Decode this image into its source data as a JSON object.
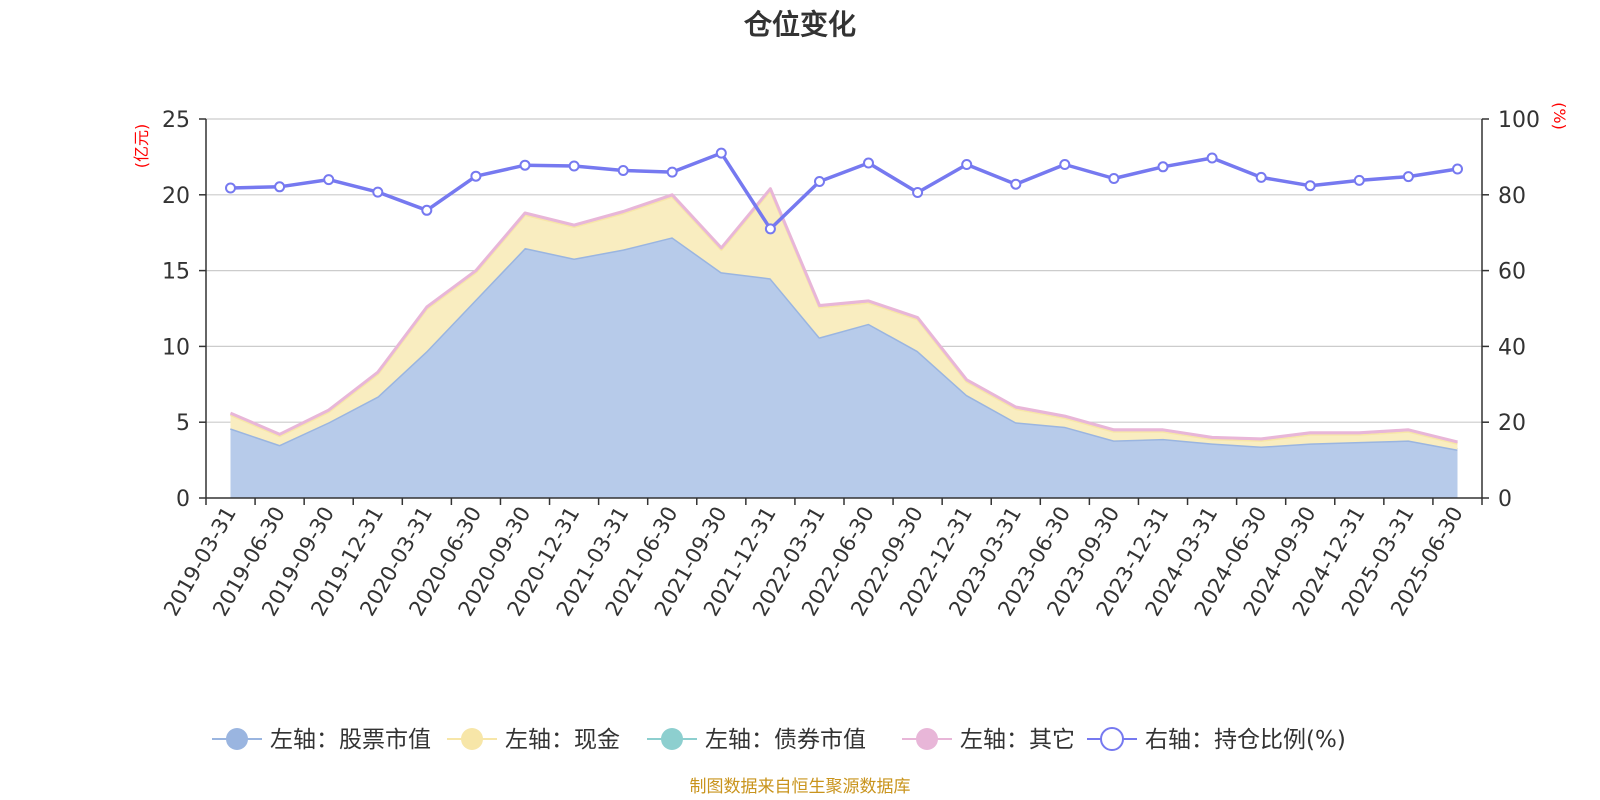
{
  "chart_data": {
    "type": "area",
    "title": "仓位变化",
    "left_axis_unit": "(亿元)",
    "right_axis_unit": "(%)",
    "ylim_left": [
      0,
      25
    ],
    "ylim_right": [
      0,
      100
    ],
    "yticks_left": [
      "0",
      "5",
      "10",
      "15",
      "20",
      "25"
    ],
    "yticks_right": [
      "0",
      "20",
      "40",
      "60",
      "80",
      "100"
    ],
    "grid": true,
    "legend_position": "bottom",
    "x": [
      "2019-03-31",
      "2019-06-30",
      "2019-09-30",
      "2019-12-31",
      "2020-03-31",
      "2020-06-30",
      "2020-09-30",
      "2020-12-31",
      "2021-03-31",
      "2021-06-30",
      "2021-09-30",
      "2021-12-31",
      "2022-03-31",
      "2022-06-30",
      "2022-09-30",
      "2022-12-31",
      "2023-03-31",
      "2023-06-30",
      "2023-09-30",
      "2023-12-31",
      "2024-03-31",
      "2024-06-30",
      "2024-09-30",
      "2024-12-31",
      "2025-03-31",
      "2025-06-30"
    ],
    "series": [
      {
        "name": "左轴：股票市值",
        "axis": "left",
        "kind": "area",
        "color": "#9ab5e0",
        "fill": "#b7cbea",
        "values": [
          4.6,
          3.5,
          5.0,
          6.7,
          9.7,
          13.1,
          16.5,
          15.8,
          16.4,
          17.2,
          14.9,
          14.5,
          10.6,
          11.5,
          9.7,
          6.8,
          5.0,
          4.7,
          3.8,
          3.9,
          3.6,
          3.4,
          3.6,
          3.7,
          3.8,
          3.2
        ]
      },
      {
        "name": "左轴：现金",
        "axis": "left",
        "kind": "area",
        "color": "#f7e6a8",
        "fill": "#f9edc0",
        "values": [
          0.9,
          0.6,
          0.7,
          1.5,
          2.8,
          1.8,
          2.2,
          2.1,
          2.4,
          2.7,
          1.5,
          5.8,
          2.0,
          1.4,
          2.1,
          0.9,
          0.9,
          0.6,
          0.6,
          0.5,
          0.3,
          0.4,
          0.6,
          0.5,
          0.6,
          0.4
        ]
      },
      {
        "name": "左轴：债券市值",
        "axis": "left",
        "kind": "area",
        "color": "#8dcfcf",
        "fill": "#a9dcdc",
        "values": [
          0,
          0,
          0,
          0,
          0,
          0,
          0,
          0,
          0,
          0,
          0,
          0,
          0,
          0,
          0,
          0,
          0,
          0,
          0,
          0,
          0,
          0,
          0,
          0,
          0,
          0
        ]
      },
      {
        "name": "左轴：其它",
        "axis": "left",
        "kind": "area",
        "color": "#e8b6d8",
        "fill": "#e8b6d8",
        "values": [
          0.1,
          0.1,
          0.1,
          0.1,
          0.1,
          0.1,
          0.1,
          0.1,
          0.1,
          0.1,
          0.1,
          0.1,
          0.1,
          0.1,
          0.1,
          0.1,
          0.1,
          0.1,
          0.1,
          0.1,
          0.1,
          0.1,
          0.1,
          0.1,
          0.1,
          0.1
        ]
      },
      {
        "name": "右轴：持仓比例(%)",
        "axis": "right",
        "kind": "line",
        "color": "#7679f0",
        "values": [
          81.8,
          82.1,
          84.0,
          80.7,
          75.9,
          84.9,
          87.8,
          87.6,
          86.4,
          86.0,
          91.0,
          71.0,
          83.5,
          88.4,
          80.6,
          88.0,
          82.8,
          88.0,
          84.3,
          87.4,
          89.7,
          84.6,
          82.4,
          83.8,
          84.8,
          86.8
        ]
      }
    ],
    "source": "制图数据来自恒生聚源数据库"
  }
}
